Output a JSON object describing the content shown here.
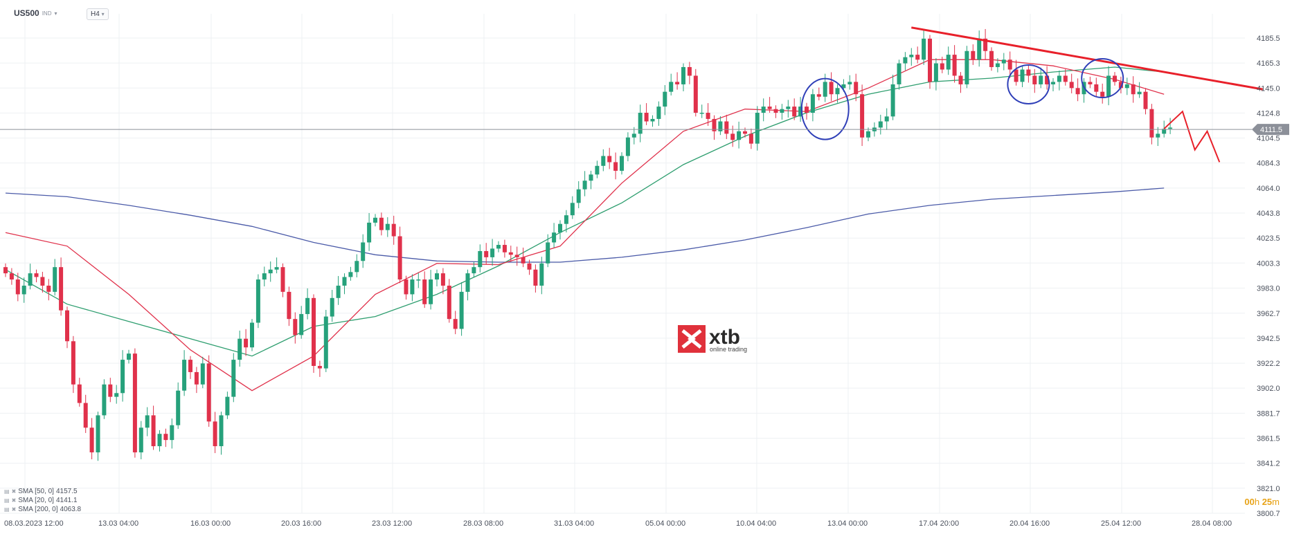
{
  "header": {
    "symbol": "US500",
    "symbol_type": "IND",
    "timeframe": "H4"
  },
  "legend": [
    {
      "label": "SMA [50, 0]",
      "value": "4157.5"
    },
    {
      "label": "SMA [20, 0]",
      "value": "4141.1"
    },
    {
      "label": "SMA [200, 0]",
      "value": "4063.8"
    }
  ],
  "timer": {
    "hours": "00",
    "h": "h",
    "minutes": "25",
    "m": "m"
  },
  "logo": {
    "brand": "xtb",
    "tagline": "online trading"
  },
  "colors": {
    "bull": "#26a17b",
    "bear": "#e0314b",
    "sma50": "#2e9e6f",
    "sma20": "#e0314b",
    "sma200": "#4a5aa8",
    "annotation_line": "#e8202a",
    "annotation_circle": "#2f3fb8",
    "price_line": "#8c9099",
    "timer_color": "#e8a317"
  },
  "chart_data": {
    "type": "candlestick",
    "current_price": 4111.5,
    "ylim": [
      3800.7,
      4200.0
    ],
    "y_ticks": [
      "4185.5",
      "4165.3",
      "4145.0",
      "4124.8",
      "4104.5",
      "4084.3",
      "4064.0",
      "4043.8",
      "4023.5",
      "4003.3",
      "3983.0",
      "3962.7",
      "3942.5",
      "3922.2",
      "3902.0",
      "3881.7",
      "3861.5",
      "3841.2",
      "3821.0",
      "3800.7"
    ],
    "x_tick_labels": [
      "08.03.2023  12:00",
      "13.03  04:00",
      "16.03  00:00",
      "20.03  16:00",
      "23.03  12:00",
      "28.03  08:00",
      "31.03  04:00",
      "05.04  00:00",
      "10.04  04:00",
      "13.04  00:00",
      "17.04  20:00",
      "20.04  16:00",
      "25.04  12:00",
      "28.04  08:00"
    ],
    "closes": [
      3995,
      3990,
      3978,
      3985,
      3995,
      3992,
      3985,
      3980,
      4000,
      3965,
      3940,
      3905,
      3890,
      3870,
      3850,
      3880,
      3905,
      3895,
      3898,
      3925,
      3930,
      3850,
      3870,
      3880,
      3855,
      3865,
      3860,
      3872,
      3900,
      3925,
      3915,
      3905,
      3922,
      3875,
      3855,
      3880,
      3895,
      3925,
      3942,
      3935,
      3955,
      3990,
      3995,
      3998,
      4000,
      3980,
      3958,
      3945,
      3962,
      3975,
      3920,
      3918,
      3960,
      3975,
      3985,
      3992,
      3996,
      4005,
      4020,
      4036,
      4040,
      4030,
      4035,
      4025,
      3990,
      3978,
      3990,
      3990,
      3970,
      3990,
      3995,
      3985,
      3958,
      3950,
      3980,
      3995,
      4000,
      4013,
      4008,
      4015,
      4018,
      4012,
      4010,
      4008,
      4003,
      3998,
      3985,
      4003,
      4020,
      4028,
      4035,
      4042,
      4052,
      4063,
      4070,
      4075,
      4082,
      4090,
      4085,
      4078,
      4090,
      4105,
      4108,
      4125,
      4118,
      4120,
      4130,
      4142,
      4150,
      4148,
      4162,
      4155,
      4125,
      4125,
      4120,
      4110,
      4118,
      4108,
      4103,
      4110,
      4108,
      4100,
      4125,
      4130,
      4128,
      4125,
      4128,
      4130,
      4122,
      4130,
      4125,
      4140,
      4138,
      4150,
      4140,
      4145,
      4148,
      4150,
      4140,
      4105,
      4110,
      4113,
      4118,
      4122,
      4148,
      4165,
      4170,
      4172,
      4168,
      4185,
      4150,
      4165,
      4160,
      4172,
      4155,
      4148,
      4175,
      4168,
      4185,
      4175,
      4162,
      4165,
      4168,
      4160,
      4150,
      4160,
      4155,
      4148,
      4155,
      4148,
      4150,
      4155,
      4150,
      4145,
      4140,
      4150,
      4148,
      4142,
      4138,
      4155,
      4150,
      4145,
      4148,
      4140,
      4142,
      4128,
      4105,
      4108,
      4112,
      4113
    ],
    "series": [
      {
        "name": "SMA [20, 0]",
        "values": [
          [
            0,
            4028
          ],
          [
            10,
            4017
          ],
          [
            20,
            3978
          ],
          [
            30,
            3933
          ],
          [
            40,
            3900
          ],
          [
            50,
            3928
          ],
          [
            60,
            3978
          ],
          [
            70,
            4003
          ],
          [
            80,
            4002
          ],
          [
            90,
            4017
          ],
          [
            100,
            4068
          ],
          [
            110,
            4110
          ],
          [
            120,
            4128
          ],
          [
            130,
            4126
          ],
          [
            140,
            4145
          ],
          [
            150,
            4168
          ],
          [
            160,
            4168
          ],
          [
            170,
            4163
          ],
          [
            180,
            4152
          ],
          [
            188,
            4140
          ]
        ]
      },
      {
        "name": "SMA [50, 0]",
        "values": [
          [
            0,
            3998
          ],
          [
            10,
            3970
          ],
          [
            20,
            3956
          ],
          [
            30,
            3942
          ],
          [
            40,
            3928
          ],
          [
            50,
            3952
          ],
          [
            60,
            3960
          ],
          [
            70,
            3978
          ],
          [
            80,
            4001
          ],
          [
            90,
            4028
          ],
          [
            100,
            4052
          ],
          [
            110,
            4083
          ],
          [
            120,
            4106
          ],
          [
            130,
            4125
          ],
          [
            140,
            4140
          ],
          [
            150,
            4150
          ],
          [
            160,
            4153
          ],
          [
            170,
            4158
          ],
          [
            180,
            4162
          ],
          [
            188,
            4158
          ]
        ]
      },
      {
        "name": "SMA [200, 0]",
        "values": [
          [
            0,
            4060
          ],
          [
            10,
            4057
          ],
          [
            20,
            4050
          ],
          [
            30,
            4042
          ],
          [
            40,
            4033
          ],
          [
            50,
            4020
          ],
          [
            60,
            4010
          ],
          [
            70,
            4005
          ],
          [
            80,
            4004
          ],
          [
            90,
            4004
          ],
          [
            100,
            4008
          ],
          [
            110,
            4014
          ],
          [
            120,
            4022
          ],
          [
            130,
            4032
          ],
          [
            140,
            4043
          ],
          [
            150,
            4050
          ],
          [
            160,
            4055
          ],
          [
            170,
            4058
          ],
          [
            180,
            4061
          ],
          [
            188,
            4064
          ]
        ]
      }
    ],
    "annotations": {
      "trendline": [
        [
          147,
          4194
        ],
        [
          204,
          4144
        ]
      ],
      "zigzag": [
        [
          188,
          4112
        ],
        [
          191,
          4126
        ],
        [
          193,
          4095
        ],
        [
          195,
          4110
        ],
        [
          197,
          4085
        ]
      ],
      "ellipses": [
        [
          133,
          4128
        ],
        [
          166,
          4148
        ],
        [
          178,
          4153
        ]
      ]
    }
  }
}
